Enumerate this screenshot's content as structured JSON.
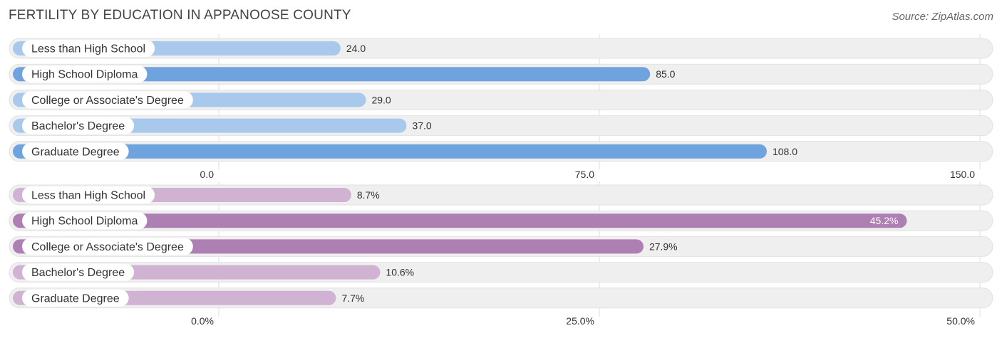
{
  "title": "FERTILITY BY EDUCATION IN APPANOOSE COUNTY",
  "source": "Source: ZipAtlas.com",
  "chart_data": [
    {
      "type": "bar",
      "orientation": "horizontal",
      "categories": [
        "Less than High School",
        "High School Diploma",
        "College or Associate's Degree",
        "Bachelor's Degree",
        "Graduate Degree"
      ],
      "values": [
        24.0,
        85.0,
        29.0,
        37.0,
        108.0
      ],
      "value_labels": [
        "24.0",
        "85.0",
        "29.0",
        "37.0",
        "108.0"
      ],
      "xlim": [
        0,
        150
      ],
      "ticks": [
        0,
        75,
        150
      ],
      "tick_labels": [
        "0.0",
        "75.0",
        "150.0"
      ],
      "grid": true,
      "colors": {
        "light": "#a8c8ec",
        "dark": "#6fa3de",
        "track": "#f1f1f1"
      },
      "highlight": [
        1,
        4
      ]
    },
    {
      "type": "bar",
      "orientation": "horizontal",
      "categories": [
        "Less than High School",
        "High School Diploma",
        "College or Associate's Degree",
        "Bachelor's Degree",
        "Graduate Degree"
      ],
      "values": [
        8.7,
        45.2,
        27.9,
        10.6,
        7.7
      ],
      "value_labels": [
        "8.7%",
        "45.2%",
        "27.9%",
        "10.6%",
        "7.7%"
      ],
      "xlim": [
        0,
        50
      ],
      "ticks": [
        0,
        25,
        50
      ],
      "tick_labels": [
        "0.0%",
        "25.0%",
        "50.0%"
      ],
      "grid": true,
      "colors": {
        "light": "#d0b2d3",
        "dark": "#ae7fb3",
        "track": "#f1f1f1"
      },
      "highlight": [
        1,
        2
      ]
    }
  ]
}
